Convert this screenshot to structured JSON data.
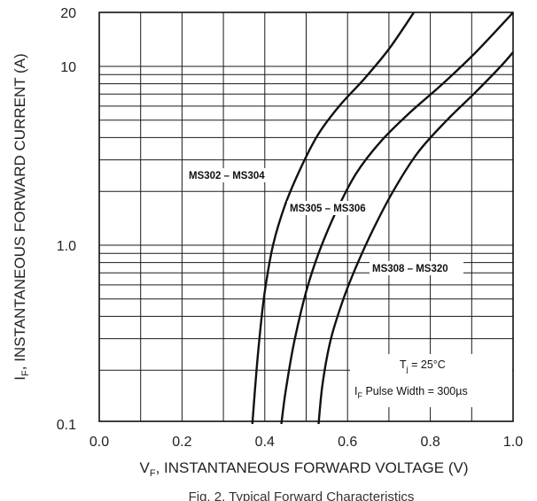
{
  "chart_data": {
    "type": "line",
    "y_scale": "log",
    "grid": true,
    "xlabel_prefix": "V",
    "xlabel_sub": "F",
    "xlabel_rest": ", INSTANTANEOUS FORWARD VOLTAGE (V)",
    "ylabel_prefix": "I",
    "ylabel_sub": "F",
    "ylabel_rest": ", INSTANTANEOUS FORWARD CURRENT (A)",
    "xlim": [
      0.0,
      1.0
    ],
    "ylim": [
      0.1,
      20
    ],
    "x_ticks": [
      "0.0",
      "0.2",
      "0.4",
      "0.6",
      "0.8",
      "1.0"
    ],
    "y_ticks": [
      {
        "value": 0.1,
        "label": "0.1"
      },
      {
        "value": 1,
        "label": "1.0"
      },
      {
        "value": 10,
        "label": "10"
      },
      {
        "value": 20,
        "label": "20"
      }
    ],
    "series": [
      {
        "name": "MS302 – MS304",
        "x": [
          0.37,
          0.38,
          0.39,
          0.4,
          0.42,
          0.45,
          0.49,
          0.53,
          0.58,
          0.64,
          0.7,
          0.76
        ],
        "y": [
          0.1,
          0.2,
          0.35,
          0.55,
          1.0,
          1.7,
          2.8,
          4.2,
          6.0,
          8.5,
          12.5,
          20.0
        ]
      },
      {
        "name": "MS305 – MS306",
        "x": [
          0.44,
          0.45,
          0.47,
          0.5,
          0.53,
          0.57,
          0.62,
          0.68,
          0.75,
          0.83,
          0.91,
          1.0
        ],
        "y": [
          0.1,
          0.15,
          0.28,
          0.55,
          0.9,
          1.5,
          2.5,
          3.8,
          5.5,
          8.0,
          12.0,
          20.0
        ]
      },
      {
        "name": "MS308 – MS320",
        "x": [
          0.53,
          0.54,
          0.56,
          0.59,
          0.62,
          0.66,
          0.71,
          0.77,
          0.84,
          0.91,
          0.97,
          1.0
        ],
        "y": [
          0.1,
          0.17,
          0.3,
          0.5,
          0.75,
          1.2,
          2.0,
          3.3,
          5.0,
          7.2,
          10.0,
          12.0
        ]
      }
    ],
    "annotations": {
      "tj_prefix": "T",
      "tj_sub": "j",
      "tj_rest": " = 25°C",
      "pulse_prefix": "I",
      "pulse_sub": "F",
      "pulse_rest": " Pulse Width = 300µs"
    },
    "caption": "Fig. 2, Typical Forward Characteristics"
  }
}
